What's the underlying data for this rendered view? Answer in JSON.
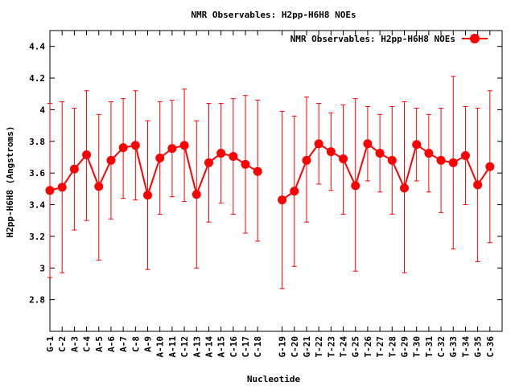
{
  "chart_data": {
    "type": "line",
    "title": "NMR Observables: H2pp-H6H8 NOEs",
    "xlabel": "Nucleotide",
    "ylabel": "H2pp-H6H8 (Angstroms)",
    "ylim": [
      2.6,
      4.5
    ],
    "yticks": [
      2.8,
      3,
      3.2,
      3.4,
      3.6,
      3.8,
      4,
      4.2,
      4.4
    ],
    "ytick_labels": [
      "2.8",
      "3",
      "3.2",
      "3.4",
      "3.6",
      "3.8",
      "4",
      "4.2",
      "4.4"
    ],
    "grid": false,
    "legend_position": "top-right",
    "colors": {
      "series": "#ff0000",
      "axis": "#000000"
    },
    "series": [
      {
        "name": "NMR Observables: H2pp-H6H8 NOEs",
        "categories": [
          "G-1",
          "C-2",
          "A-3",
          "C-4",
          "A-5",
          "A-6",
          "A-7",
          "C-8",
          "A-9",
          "A-10",
          "A-11",
          "C-12",
          "A-13",
          "A-14",
          "A-15",
          "C-16",
          "C-17",
          "C-18"
        ],
        "values": [
          3.49,
          3.51,
          3.625,
          3.715,
          3.515,
          3.68,
          3.76,
          3.775,
          3.46,
          3.695,
          3.755,
          3.775,
          3.465,
          3.665,
          3.725,
          3.705,
          3.655,
          3.61
        ],
        "err_low": [
          2.94,
          2.97,
          3.24,
          3.3,
          3.05,
          3.31,
          3.44,
          3.43,
          2.99,
          3.34,
          3.45,
          3.42,
          3.0,
          3.29,
          3.41,
          3.34,
          3.22,
          3.17
        ],
        "err_high": [
          4.04,
          4.05,
          4.01,
          4.12,
          3.97,
          4.05,
          4.07,
          4.12,
          3.93,
          4.05,
          4.06,
          4.13,
          3.93,
          4.04,
          4.04,
          4.07,
          4.09,
          4.06
        ]
      },
      {
        "name": "",
        "categories": [
          "G-19",
          "C-20",
          "G-21",
          "T-22",
          "T-23",
          "T-24",
          "G-25",
          "T-26",
          "T-27",
          "T-28",
          "G-29",
          "T-30",
          "T-31",
          "C-32",
          "G-33",
          "T-34",
          "G-35",
          "C-36"
        ],
        "values": [
          3.43,
          3.485,
          3.68,
          3.785,
          3.735,
          3.69,
          3.52,
          3.785,
          3.725,
          3.68,
          3.505,
          3.78,
          3.725,
          3.68,
          3.665,
          3.71,
          3.525,
          3.64
        ],
        "err_low": [
          2.87,
          3.01,
          3.29,
          3.53,
          3.49,
          3.34,
          2.98,
          3.55,
          3.48,
          3.34,
          2.97,
          3.55,
          3.48,
          3.35,
          3.12,
          3.4,
          3.04,
          3.16
        ],
        "err_high": [
          3.99,
          3.96,
          4.08,
          4.04,
          3.98,
          4.03,
          4.07,
          4.02,
          3.97,
          4.02,
          4.05,
          4.01,
          3.97,
          4.01,
          4.21,
          4.02,
          4.01,
          4.12
        ]
      }
    ]
  }
}
